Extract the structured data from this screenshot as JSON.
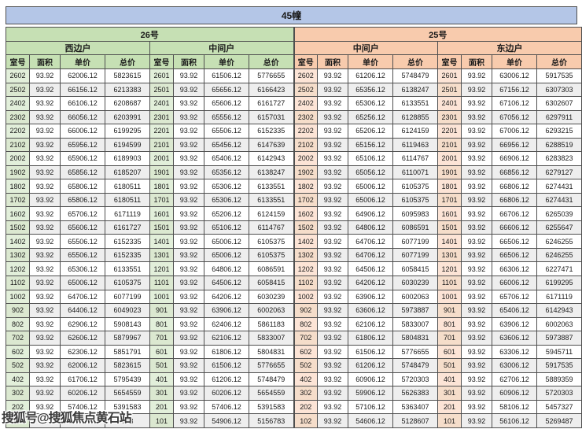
{
  "title": "45幢",
  "watermark": "搜狐号@搜狐焦点黄石站",
  "buildings": [
    "26号",
    "25号"
  ],
  "columns": [
    "室号",
    "面积",
    "单价",
    "总价"
  ],
  "colors": {
    "title_bg": "#b4c6e7",
    "green_header": "#c6e0b4",
    "green_room": "#e2efda",
    "orange_header": "#f8cbad",
    "orange_room": "#fce4d6",
    "alt_row": "#eeeeee",
    "border": "#4f4f4f"
  },
  "groups": [
    {
      "building": "26号",
      "unit": "西边户",
      "rows": [
        [
          "2602",
          "93.92",
          "62006.12",
          "5823615"
        ],
        [
          "2502",
          "93.92",
          "66156.12",
          "6213383"
        ],
        [
          "2402",
          "93.92",
          "66106.12",
          "6208687"
        ],
        [
          "2302",
          "93.92",
          "66056.12",
          "6203991"
        ],
        [
          "2202",
          "93.92",
          "66006.12",
          "6199295"
        ],
        [
          "2102",
          "93.92",
          "65956.12",
          "6194599"
        ],
        [
          "2002",
          "93.92",
          "65906.12",
          "6189903"
        ],
        [
          "1902",
          "93.92",
          "65856.12",
          "6185207"
        ],
        [
          "1802",
          "93.92",
          "65806.12",
          "6180511"
        ],
        [
          "1702",
          "93.92",
          "65806.12",
          "6180511"
        ],
        [
          "1602",
          "93.92",
          "65706.12",
          "6171119"
        ],
        [
          "1502",
          "93.92",
          "65606.12",
          "6161727"
        ],
        [
          "1402",
          "93.92",
          "65506.12",
          "6152335"
        ],
        [
          "1302",
          "93.92",
          "65506.12",
          "6152335"
        ],
        [
          "1202",
          "93.92",
          "65306.12",
          "6133551"
        ],
        [
          "1102",
          "93.92",
          "65006.12",
          "6105375"
        ],
        [
          "1002",
          "93.92",
          "64706.12",
          "6077199"
        ],
        [
          "902",
          "93.92",
          "64406.12",
          "6049023"
        ],
        [
          "802",
          "93.92",
          "62906.12",
          "5908143"
        ],
        [
          "702",
          "93.92",
          "62606.12",
          "5879967"
        ],
        [
          "602",
          "93.92",
          "62306.12",
          "5851791"
        ],
        [
          "502",
          "93.92",
          "62006.12",
          "5823615"
        ],
        [
          "402",
          "93.92",
          "61706.12",
          "5795439"
        ],
        [
          "302",
          "93.92",
          "60206.12",
          "5654559"
        ],
        [
          "202",
          "93.92",
          "57406.12",
          "5391583"
        ],
        [
          "",
          "",
          "",
          "743"
        ]
      ]
    },
    {
      "building": "26号",
      "unit": "中间户",
      "rows": [
        [
          "2601",
          "93.92",
          "61506.12",
          "5776655"
        ],
        [
          "2501",
          "93.92",
          "65656.12",
          "6166423"
        ],
        [
          "2401",
          "93.92",
          "65606.12",
          "6161727"
        ],
        [
          "2301",
          "93.92",
          "65556.12",
          "6157031"
        ],
        [
          "2201",
          "93.92",
          "65506.12",
          "6152335"
        ],
        [
          "2101",
          "93.92",
          "65456.12",
          "6147639"
        ],
        [
          "2001",
          "93.92",
          "65406.12",
          "6142943"
        ],
        [
          "1901",
          "93.92",
          "65356.12",
          "6138247"
        ],
        [
          "1801",
          "93.92",
          "65306.12",
          "6133551"
        ],
        [
          "1701",
          "93.92",
          "65306.12",
          "6133551"
        ],
        [
          "1601",
          "93.92",
          "65206.12",
          "6124159"
        ],
        [
          "1501",
          "93.92",
          "65106.12",
          "6114767"
        ],
        [
          "1401",
          "93.92",
          "65006.12",
          "6105375"
        ],
        [
          "1301",
          "93.92",
          "65006.12",
          "6105375"
        ],
        [
          "1201",
          "93.92",
          "64806.12",
          "6086591"
        ],
        [
          "1101",
          "93.92",
          "64506.12",
          "6058415"
        ],
        [
          "1001",
          "93.92",
          "64206.12",
          "6030239"
        ],
        [
          "901",
          "93.92",
          "63906.12",
          "6002063"
        ],
        [
          "801",
          "93.92",
          "62406.12",
          "5861183"
        ],
        [
          "701",
          "93.92",
          "62106.12",
          "5833007"
        ],
        [
          "601",
          "93.92",
          "61806.12",
          "5804831"
        ],
        [
          "501",
          "93.92",
          "61506.12",
          "5776655"
        ],
        [
          "401",
          "93.92",
          "61206.12",
          "5748479"
        ],
        [
          "301",
          "93.92",
          "60206.12",
          "5654559"
        ],
        [
          "201",
          "93.92",
          "57406.12",
          "5391583"
        ],
        [
          "101",
          "93.92",
          "54906.12",
          "5156783"
        ]
      ]
    },
    {
      "building": "25号",
      "unit": "中间户",
      "rows": [
        [
          "2602",
          "93.92",
          "61206.12",
          "5748479"
        ],
        [
          "2502",
          "93.92",
          "65356.12",
          "6138247"
        ],
        [
          "2402",
          "93.92",
          "65306.12",
          "6133551"
        ],
        [
          "2302",
          "93.92",
          "65256.12",
          "6128855"
        ],
        [
          "2202",
          "93.92",
          "65206.12",
          "6124159"
        ],
        [
          "2102",
          "93.92",
          "65156.12",
          "6119463"
        ],
        [
          "2002",
          "93.92",
          "65106.12",
          "6114767"
        ],
        [
          "1902",
          "93.92",
          "65056.12",
          "6110071"
        ],
        [
          "1802",
          "93.92",
          "65006.12",
          "6105375"
        ],
        [
          "1702",
          "93.92",
          "65006.12",
          "6105375"
        ],
        [
          "1602",
          "93.92",
          "64906.12",
          "6095983"
        ],
        [
          "1502",
          "93.92",
          "64806.12",
          "6086591"
        ],
        [
          "1402",
          "93.92",
          "64706.12",
          "6077199"
        ],
        [
          "1302",
          "93.92",
          "64706.12",
          "6077199"
        ],
        [
          "1202",
          "93.92",
          "64506.12",
          "6058415"
        ],
        [
          "1102",
          "93.92",
          "64206.12",
          "6030239"
        ],
        [
          "1002",
          "93.92",
          "63906.12",
          "6002063"
        ],
        [
          "902",
          "93.92",
          "63606.12",
          "5973887"
        ],
        [
          "802",
          "93.92",
          "62106.12",
          "5833007"
        ],
        [
          "702",
          "93.92",
          "61806.12",
          "5804831"
        ],
        [
          "602",
          "93.92",
          "61506.12",
          "5776655"
        ],
        [
          "502",
          "93.92",
          "61206.12",
          "5748479"
        ],
        [
          "402",
          "93.92",
          "60906.12",
          "5720303"
        ],
        [
          "302",
          "93.92",
          "59906.12",
          "5626383"
        ],
        [
          "202",
          "93.92",
          "57106.12",
          "5363407"
        ],
        [
          "102",
          "93.92",
          "54606.12",
          "5128607"
        ]
      ]
    },
    {
      "building": "25号",
      "unit": "东边户",
      "rows": [
        [
          "2601",
          "93.92",
          "63006.12",
          "5917535"
        ],
        [
          "2501",
          "93.92",
          "67156.12",
          "6307303"
        ],
        [
          "2401",
          "93.92",
          "67106.12",
          "6302607"
        ],
        [
          "2301",
          "93.92",
          "67056.12",
          "6297911"
        ],
        [
          "2201",
          "93.92",
          "67006.12",
          "6293215"
        ],
        [
          "2101",
          "93.92",
          "66956.12",
          "6288519"
        ],
        [
          "2001",
          "93.92",
          "66906.12",
          "6283823"
        ],
        [
          "1901",
          "93.92",
          "66856.12",
          "6279127"
        ],
        [
          "1801",
          "93.92",
          "66806.12",
          "6274431"
        ],
        [
          "1701",
          "93.92",
          "66806.12",
          "6274431"
        ],
        [
          "1601",
          "93.92",
          "66706.12",
          "6265039"
        ],
        [
          "1501",
          "93.92",
          "66606.12",
          "6255647"
        ],
        [
          "1401",
          "93.92",
          "66506.12",
          "6246255"
        ],
        [
          "1301",
          "93.92",
          "66506.12",
          "6246255"
        ],
        [
          "1201",
          "93.92",
          "66306.12",
          "6227471"
        ],
        [
          "1101",
          "93.92",
          "66006.12",
          "6199295"
        ],
        [
          "1001",
          "93.92",
          "65706.12",
          "6171119"
        ],
        [
          "901",
          "93.92",
          "65406.12",
          "6142943"
        ],
        [
          "801",
          "93.92",
          "63906.12",
          "6002063"
        ],
        [
          "701",
          "93.92",
          "63606.12",
          "5973887"
        ],
        [
          "601",
          "93.92",
          "63306.12",
          "5945711"
        ],
        [
          "501",
          "93.92",
          "63006.12",
          "5917535"
        ],
        [
          "401",
          "93.92",
          "62706.12",
          "5889359"
        ],
        [
          "301",
          "93.92",
          "60906.12",
          "5720303"
        ],
        [
          "201",
          "93.92",
          "58106.12",
          "5457327"
        ],
        [
          "101",
          "93.92",
          "56106.12",
          "5269487"
        ]
      ]
    }
  ]
}
